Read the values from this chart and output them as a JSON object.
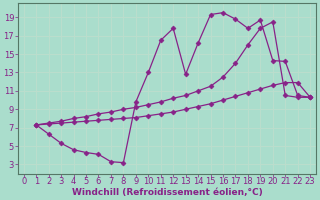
{
  "title": "",
  "xlabel": "Windchill (Refroidissement éolien,°C)",
  "bg_color": "#aaddcc",
  "line_color": "#882288",
  "grid_color": "#bbddcc",
  "xlim": [
    -0.5,
    23.5
  ],
  "ylim": [
    2,
    20.5
  ],
  "xticks": [
    0,
    1,
    2,
    3,
    4,
    5,
    6,
    7,
    8,
    9,
    10,
    11,
    12,
    13,
    14,
    15,
    16,
    17,
    18,
    19,
    20,
    21,
    22,
    23
  ],
  "yticks": [
    3,
    5,
    7,
    9,
    11,
    13,
    15,
    17,
    19
  ],
  "line1_x": [
    1,
    2,
    3,
    4,
    5,
    6,
    7,
    8,
    9,
    10,
    11,
    12,
    13,
    14,
    15,
    16,
    17,
    18,
    19,
    20,
    21,
    22,
    23
  ],
  "line1_y": [
    7.3,
    6.3,
    5.3,
    4.6,
    4.3,
    4.1,
    3.3,
    3.2,
    9.8,
    13.0,
    16.5,
    17.8,
    12.8,
    16.2,
    19.3,
    19.5,
    18.8,
    17.8,
    18.7,
    14.3,
    14.2,
    10.5,
    10.3
  ],
  "line2_x": [
    1,
    2,
    3,
    4,
    5,
    6,
    7,
    8,
    9,
    10,
    11,
    12,
    13,
    14,
    15,
    16,
    17,
    18,
    19,
    20,
    21,
    22,
    23
  ],
  "line2_y": [
    7.3,
    7.5,
    7.7,
    8.0,
    8.2,
    8.5,
    8.7,
    9.0,
    9.2,
    9.5,
    9.8,
    10.2,
    10.5,
    11.0,
    11.5,
    12.5,
    14.0,
    16.0,
    17.8,
    18.5,
    10.5,
    10.3,
    10.3
  ],
  "line3_x": [
    1,
    2,
    3,
    4,
    5,
    6,
    7,
    8,
    9,
    10,
    11,
    12,
    13,
    14,
    15,
    16,
    17,
    18,
    19,
    20,
    21,
    22,
    23
  ],
  "line3_y": [
    7.3,
    7.4,
    7.5,
    7.6,
    7.7,
    7.8,
    7.9,
    8.0,
    8.1,
    8.3,
    8.5,
    8.7,
    9.0,
    9.3,
    9.6,
    10.0,
    10.4,
    10.8,
    11.2,
    11.6,
    11.9,
    11.9,
    10.3
  ],
  "xlabel_fontsize": 6.5,
  "tick_fontsize": 6,
  "marker_size": 2.5,
  "line_width": 0.9
}
